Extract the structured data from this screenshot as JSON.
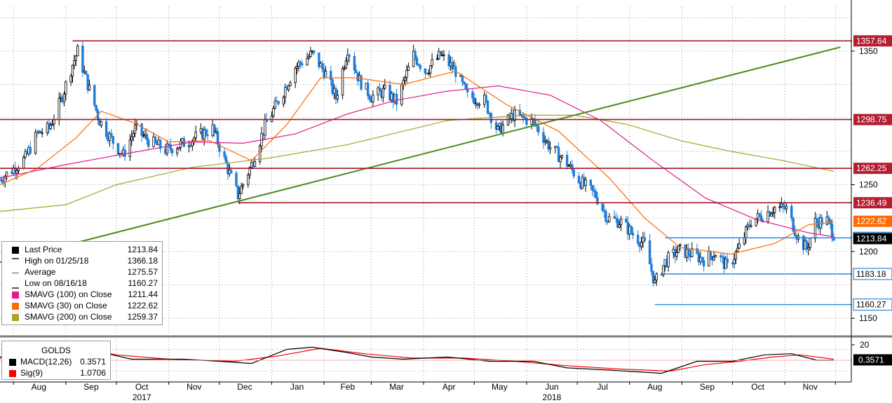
{
  "chart_data": {
    "type": "candlestick",
    "instrument": "GOLDS",
    "x_months": [
      "Aug",
      "Sep",
      "Oct",
      "Nov",
      "Dec",
      "Jan",
      "Feb",
      "Mar",
      "Apr",
      "May",
      "Jun",
      "Jul",
      "Aug",
      "Sep",
      "Oct",
      "Nov"
    ],
    "x_years": [
      "2017",
      "2018"
    ],
    "ylim": [
      1138,
      1383
    ],
    "y_ticks": [
      1150,
      1200,
      1250,
      1350
    ],
    "price_path": [
      [
        "2017-07-24",
        1254
      ],
      [
        "2017-08-01",
        1262
      ],
      [
        "2017-08-08",
        1270
      ],
      [
        "2017-08-15",
        1288
      ],
      [
        "2017-08-22",
        1292
      ],
      [
        "2017-08-29",
        1313
      ],
      [
        "2017-09-05",
        1340
      ],
      [
        "2017-09-08",
        1350
      ],
      [
        "2017-09-14",
        1325
      ],
      [
        "2017-09-21",
        1298
      ],
      [
        "2017-09-28",
        1284
      ],
      [
        "2017-10-05",
        1272
      ],
      [
        "2017-10-12",
        1292
      ],
      [
        "2017-10-20",
        1283
      ],
      [
        "2017-10-30",
        1276
      ],
      [
        "2017-11-08",
        1280
      ],
      [
        "2017-11-16",
        1285
      ],
      [
        "2017-11-27",
        1292
      ],
      [
        "2017-12-05",
        1265
      ],
      [
        "2017-12-12",
        1242
      ],
      [
        "2017-12-20",
        1265
      ],
      [
        "2017-12-28",
        1294
      ],
      [
        "2018-01-08",
        1320
      ],
      [
        "2018-01-15",
        1338
      ],
      [
        "2018-01-25",
        1348
      ],
      [
        "2018-02-02",
        1333
      ],
      [
        "2018-02-08",
        1315
      ],
      [
        "2018-02-15",
        1352
      ],
      [
        "2018-02-22",
        1328
      ],
      [
        "2018-03-01",
        1316
      ],
      [
        "2018-03-09",
        1320
      ],
      [
        "2018-03-16",
        1312
      ],
      [
        "2018-03-26",
        1347
      ],
      [
        "2018-04-02",
        1335
      ],
      [
        "2018-04-11",
        1347
      ],
      [
        "2018-04-20",
        1335
      ],
      [
        "2018-04-27",
        1316
      ],
      [
        "2018-05-07",
        1313
      ],
      [
        "2018-05-15",
        1290
      ],
      [
        "2018-05-24",
        1302
      ],
      [
        "2018-06-05",
        1297
      ],
      [
        "2018-06-15",
        1278
      ],
      [
        "2018-06-25",
        1266
      ],
      [
        "2018-07-03",
        1252
      ],
      [
        "2018-07-12",
        1242
      ],
      [
        "2018-07-19",
        1225
      ],
      [
        "2018-07-27",
        1222
      ],
      [
        "2018-08-03",
        1213
      ],
      [
        "2018-08-10",
        1205
      ],
      [
        "2018-08-16",
        1176
      ],
      [
        "2018-08-22",
        1192
      ],
      [
        "2018-08-30",
        1201
      ],
      [
        "2018-09-07",
        1198
      ],
      [
        "2018-09-14",
        1194
      ],
      [
        "2018-09-21",
        1199
      ],
      [
        "2018-09-28",
        1188
      ],
      [
        "2018-10-05",
        1203
      ],
      [
        "2018-10-12",
        1223
      ],
      [
        "2018-10-19",
        1227
      ],
      [
        "2018-10-26",
        1233
      ],
      [
        "2018-11-02",
        1232
      ],
      [
        "2018-11-09",
        1210
      ],
      [
        "2018-11-14",
        1202
      ],
      [
        "2018-11-19",
        1222
      ],
      [
        "2018-11-26",
        1223
      ],
      [
        "2018-11-30",
        1213
      ]
    ],
    "sma30_path": [
      [
        "2017-07-24",
        1250
      ],
      [
        "2017-08-15",
        1262
      ],
      [
        "2017-09-07",
        1285
      ],
      [
        "2017-09-22",
        1305
      ],
      [
        "2017-10-12",
        1296
      ],
      [
        "2017-11-01",
        1282
      ],
      [
        "2017-11-25",
        1283
      ],
      [
        "2017-12-20",
        1268
      ],
      [
        "2018-01-10",
        1295
      ],
      [
        "2018-01-30",
        1330
      ],
      [
        "2018-02-20",
        1330
      ],
      [
        "2018-03-20",
        1325
      ],
      [
        "2018-04-20",
        1335
      ],
      [
        "2018-05-20",
        1310
      ],
      [
        "2018-06-20",
        1290
      ],
      [
        "2018-07-20",
        1255
      ],
      [
        "2018-08-10",
        1225
      ],
      [
        "2018-08-31",
        1203
      ],
      [
        "2018-09-30",
        1198
      ],
      [
        "2018-10-26",
        1206
      ],
      [
        "2018-11-15",
        1220
      ],
      [
        "2018-11-30",
        1222
      ]
    ],
    "sma100_path": [
      [
        "2017-07-24",
        1255
      ],
      [
        "2017-09-01",
        1265
      ],
      [
        "2017-10-01",
        1272
      ],
      [
        "2017-11-15",
        1282
      ],
      [
        "2017-12-15",
        1281
      ],
      [
        "2018-01-15",
        1288
      ],
      [
        "2018-02-15",
        1303
      ],
      [
        "2018-03-15",
        1313
      ],
      [
        "2018-04-15",
        1320
      ],
      [
        "2018-05-15",
        1324
      ],
      [
        "2018-06-15",
        1317
      ],
      [
        "2018-07-15",
        1298
      ],
      [
        "2018-08-15",
        1268
      ],
      [
        "2018-09-15",
        1240
      ],
      [
        "2018-10-15",
        1224
      ],
      [
        "2018-11-15",
        1214
      ],
      [
        "2018-11-30",
        1211
      ]
    ],
    "sma200_path": [
      [
        "2017-07-24",
        1230
      ],
      [
        "2017-09-01",
        1235
      ],
      [
        "2017-10-01",
        1250
      ],
      [
        "2017-11-15",
        1263
      ],
      [
        "2017-12-31",
        1270
      ],
      [
        "2018-02-15",
        1280
      ],
      [
        "2018-04-15",
        1298
      ],
      [
        "2018-05-31",
        1302
      ],
      [
        "2018-06-30",
        1302
      ],
      [
        "2018-07-31",
        1295
      ],
      [
        "2018-08-31",
        1283
      ],
      [
        "2018-09-30",
        1275
      ],
      [
        "2018-10-31",
        1268
      ],
      [
        "2018-11-30",
        1260
      ]
    ],
    "trendline": [
      [
        "2017-07-24",
        1192
      ],
      [
        "2018-12-04",
        1353
      ]
    ],
    "resistance_levels": [
      {
        "value": 1357.64,
        "label": "1357.64",
        "from": "2017-09-05"
      },
      {
        "value": 1298.75,
        "label": "1298.75",
        "from": "2017-07-24"
      },
      {
        "value": 1262.25,
        "label": "1262.25",
        "from": "2017-07-24"
      },
      {
        "value": 1236.49,
        "label": "1236.49",
        "from": "2017-12-12"
      }
    ],
    "support_levels": [
      {
        "value": 1210.2,
        "label": "1210.20",
        "from": "2018-08-22"
      },
      {
        "value": 1183.18,
        "label": "1183.18",
        "from": "2018-08-20"
      },
      {
        "value": 1160.27,
        "label": "1160.27",
        "from": "2018-08-16"
      }
    ],
    "price_tags": [
      {
        "value": 1222.62,
        "label": "1222.62",
        "color": "#ff6a00"
      },
      {
        "value": 1213.84,
        "label": "1213.84",
        "color": "#000000"
      }
    ],
    "legend": [
      {
        "name": "Last Price",
        "value": "1213.84",
        "marker": "square",
        "color": "#000000"
      },
      {
        "name": "High on 01/25/18",
        "value": "1366.18",
        "marker": "high",
        "color": "#555555"
      },
      {
        "name": "Average",
        "value": "1275.57",
        "marker": "avg",
        "color": "#555555"
      },
      {
        "name": "Low on 08/16/18",
        "value": "1160.27",
        "marker": "low",
        "color": "#555555"
      },
      {
        "name": "SMAVG (100)  on Close",
        "value": "1211.44",
        "marker": "square",
        "color": "#e5198c"
      },
      {
        "name": "SMAVG (30)  on Close",
        "value": "1222.62",
        "marker": "square",
        "color": "#ff6a00"
      },
      {
        "name": "SMAVG (200)  on Close",
        "value": "1259.37",
        "marker": "square",
        "color": "#a9a229"
      }
    ],
    "macd": {
      "title": "GOLDS",
      "ylim": [
        -20,
        20
      ],
      "y_ticks": [
        20
      ],
      "series": [
        {
          "name": "MACD(12,26)",
          "value": "0.3571",
          "color": "#000000"
        },
        {
          "name": "Sig(9)",
          "value": "1.0706",
          "color": "#ff0000"
        }
      ],
      "tag": "0.3571",
      "macd_path": [
        [
          "2017-07-24",
          3
        ],
        [
          "2017-08-15",
          5
        ],
        [
          "2017-09-05",
          12
        ],
        [
          "2017-09-20",
          8
        ],
        [
          "2017-10-10",
          1
        ],
        [
          "2017-11-10",
          1
        ],
        [
          "2017-12-01",
          -1
        ],
        [
          "2017-12-20",
          -3
        ],
        [
          "2018-01-10",
          10
        ],
        [
          "2018-01-25",
          12
        ],
        [
          "2018-02-15",
          7
        ],
        [
          "2018-03-01",
          3
        ],
        [
          "2018-03-20",
          1
        ],
        [
          "2018-04-15",
          3
        ],
        [
          "2018-05-10",
          -1
        ],
        [
          "2018-06-05",
          -1
        ],
        [
          "2018-06-25",
          -7
        ],
        [
          "2018-07-20",
          -9
        ],
        [
          "2018-08-20",
          -12
        ],
        [
          "2018-09-10",
          -1
        ],
        [
          "2018-10-01",
          -1
        ],
        [
          "2018-10-20",
          5
        ],
        [
          "2018-11-05",
          6
        ],
        [
          "2018-11-20",
          0
        ],
        [
          "2018-11-30",
          0
        ]
      ],
      "signal_path": [
        [
          "2017-07-24",
          2
        ],
        [
          "2017-08-20",
          4
        ],
        [
          "2017-09-12",
          10
        ],
        [
          "2017-10-01",
          5
        ],
        [
          "2017-11-01",
          1
        ],
        [
          "2017-12-10",
          -1
        ],
        [
          "2018-01-05",
          4
        ],
        [
          "2018-01-30",
          11
        ],
        [
          "2018-02-25",
          6
        ],
        [
          "2018-03-25",
          2
        ],
        [
          "2018-04-25",
          2
        ],
        [
          "2018-05-25",
          -1
        ],
        [
          "2018-06-25",
          -5
        ],
        [
          "2018-07-25",
          -8
        ],
        [
          "2018-08-25",
          -10
        ],
        [
          "2018-09-15",
          -4
        ],
        [
          "2018-10-05",
          -1
        ],
        [
          "2018-10-25",
          3
        ],
        [
          "2018-11-10",
          5
        ],
        [
          "2018-11-30",
          1
        ]
      ]
    }
  }
}
